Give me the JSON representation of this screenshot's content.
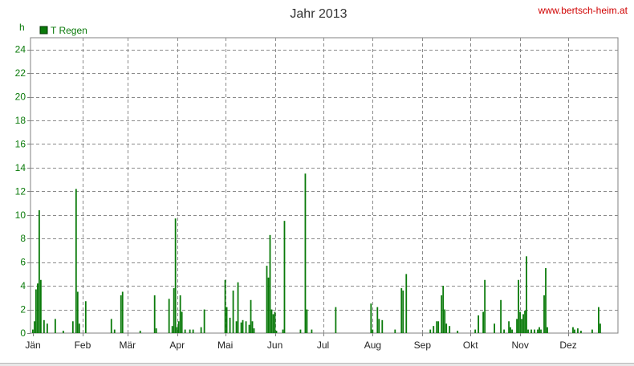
{
  "chart_data": {
    "type": "bar",
    "title": "Jahr 2013",
    "credit": "www.bertsch-heim.at",
    "ylabel": "h",
    "xlabel": "",
    "ylim": [
      0,
      25
    ],
    "yticks": [
      0,
      2,
      4,
      6,
      8,
      10,
      12,
      14,
      16,
      18,
      20,
      22,
      24
    ],
    "grid": true,
    "legend_position": "top-left",
    "x_unit": "day of year",
    "month_ticks": [
      {
        "label": "Jän",
        "day": 1
      },
      {
        "label": "Feb",
        "day": 32
      },
      {
        "label": "Mär",
        "day": 60
      },
      {
        "label": "Apr",
        "day": 91
      },
      {
        "label": "Mai",
        "day": 121
      },
      {
        "label": "Jun",
        "day": 152
      },
      {
        "label": "Jul",
        "day": 182
      },
      {
        "label": "Aug",
        "day": 213
      },
      {
        "label": "Sep",
        "day": 244
      },
      {
        "label": "Okt",
        "day": 274
      },
      {
        "label": "Nov",
        "day": 305
      },
      {
        "label": "Dez",
        "day": 335
      }
    ],
    "series": [
      {
        "name": "T Regen",
        "color": "#0a7a0a",
        "points": [
          [
            1,
            0.3
          ],
          [
            2,
            1.0
          ],
          [
            3,
            3.7
          ],
          [
            4,
            4.2
          ],
          [
            5,
            10.4
          ],
          [
            6,
            4.5
          ],
          [
            8,
            1.1
          ],
          [
            10,
            0.8
          ],
          [
            15,
            1.2
          ],
          [
            20,
            0.2
          ],
          [
            26,
            1.0
          ],
          [
            28,
            12.2
          ],
          [
            29,
            3.5
          ],
          [
            30,
            0.8
          ],
          [
            34,
            2.7
          ],
          [
            50,
            1.2
          ],
          [
            52,
            0.3
          ],
          [
            56,
            3.2
          ],
          [
            57,
            3.5
          ],
          [
            68,
            0.2
          ],
          [
            77,
            3.2
          ],
          [
            78,
            0.4
          ],
          [
            86,
            2.9
          ],
          [
            88,
            0.6
          ],
          [
            89,
            3.8
          ],
          [
            90,
            9.7
          ],
          [
            91,
            0.5
          ],
          [
            92,
            1.0
          ],
          [
            93,
            3.2
          ],
          [
            94,
            1.8
          ],
          [
            96,
            0.3
          ],
          [
            99,
            0.3
          ],
          [
            101,
            0.3
          ],
          [
            106,
            0.5
          ],
          [
            108,
            2.0
          ],
          [
            121,
            4.5
          ],
          [
            122,
            2.2
          ],
          [
            124,
            1.3
          ],
          [
            126,
            3.6
          ],
          [
            128,
            1.0
          ],
          [
            129,
            4.3
          ],
          [
            131,
            0.9
          ],
          [
            132,
            1.1
          ],
          [
            134,
            1.0
          ],
          [
            136,
            0.7
          ],
          [
            137,
            2.8
          ],
          [
            138,
            1.0
          ],
          [
            139,
            0.4
          ],
          [
            147,
            5.7
          ],
          [
            148,
            4.7
          ],
          [
            149,
            8.3
          ],
          [
            150,
            2.0
          ],
          [
            151,
            1.6
          ],
          [
            152,
            1.8
          ],
          [
            153,
            0.2
          ],
          [
            157,
            0.3
          ],
          [
            158,
            9.5
          ],
          [
            168,
            0.3
          ],
          [
            171,
            13.5
          ],
          [
            172,
            2.0
          ],
          [
            175,
            0.3
          ],
          [
            190,
            2.2
          ],
          [
            212,
            2.5
          ],
          [
            213,
            0.3
          ],
          [
            216,
            2.2
          ],
          [
            217,
            1.2
          ],
          [
            219,
            1.1
          ],
          [
            227,
            0.3
          ],
          [
            231,
            3.8
          ],
          [
            232,
            3.6
          ],
          [
            234,
            5.0
          ],
          [
            249,
            0.3
          ],
          [
            251,
            0.6
          ],
          [
            253,
            1.0
          ],
          [
            254,
            1.0
          ],
          [
            256,
            3.2
          ],
          [
            257,
            4.0
          ],
          [
            258,
            2.0
          ],
          [
            259,
            0.8
          ],
          [
            261,
            0.6
          ],
          [
            266,
            0.2
          ],
          [
            277,
            0.3
          ],
          [
            279,
            1.5
          ],
          [
            282,
            1.8
          ],
          [
            283,
            4.5
          ],
          [
            289,
            0.8
          ],
          [
            293,
            2.8
          ],
          [
            295,
            0.3
          ],
          [
            298,
            1.0
          ],
          [
            299,
            0.5
          ],
          [
            300,
            0.3
          ],
          [
            303,
            1.2
          ],
          [
            304,
            4.5
          ],
          [
            305,
            1.8
          ],
          [
            306,
            1.2
          ],
          [
            307,
            1.6
          ],
          [
            308,
            1.9
          ],
          [
            309,
            6.5
          ],
          [
            310,
            0.3
          ],
          [
            312,
            0.3
          ],
          [
            314,
            0.3
          ],
          [
            316,
            0.3
          ],
          [
            317,
            0.5
          ],
          [
            318,
            0.3
          ],
          [
            320,
            3.2
          ],
          [
            321,
            5.5
          ],
          [
            322,
            0.5
          ],
          [
            338,
            0.5
          ],
          [
            339,
            0.3
          ],
          [
            341,
            0.4
          ],
          [
            343,
            0.2
          ],
          [
            350,
            0.3
          ],
          [
            354,
            2.2
          ],
          [
            355,
            0.8
          ]
        ]
      }
    ]
  }
}
